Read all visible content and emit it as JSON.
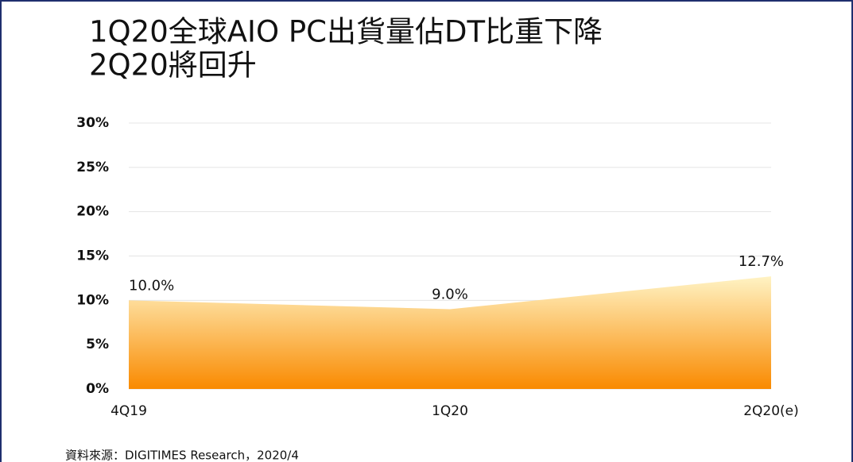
{
  "chart_data": {
    "type": "area",
    "title": [
      "1Q20全球AIO PC出貨量佔DT比重下降",
      "2Q20將回升"
    ],
    "categories": [
      "4Q19",
      "1Q20",
      "2Q20(e)"
    ],
    "values": [
      10.0,
      9.0,
      12.7
    ],
    "value_labels": [
      "10.0%",
      "9.0%",
      "12.7%"
    ],
    "colors": [
      "#fff3c4",
      "#f98a00"
    ],
    "ylim": [
      0,
      30
    ],
    "yticks": [
      {
        "value": 0,
        "label": "0%"
      },
      {
        "value": 5,
        "label": "5%"
      },
      {
        "value": 10,
        "label": "10%"
      },
      {
        "value": 15,
        "label": "15%"
      },
      {
        "value": 20,
        "label": "20%"
      },
      {
        "value": 25,
        "label": "25%"
      },
      {
        "value": 30,
        "label": "30%"
      }
    ],
    "grid": true,
    "source": "資料來源：DIGITIMES Research，2020/4"
  }
}
